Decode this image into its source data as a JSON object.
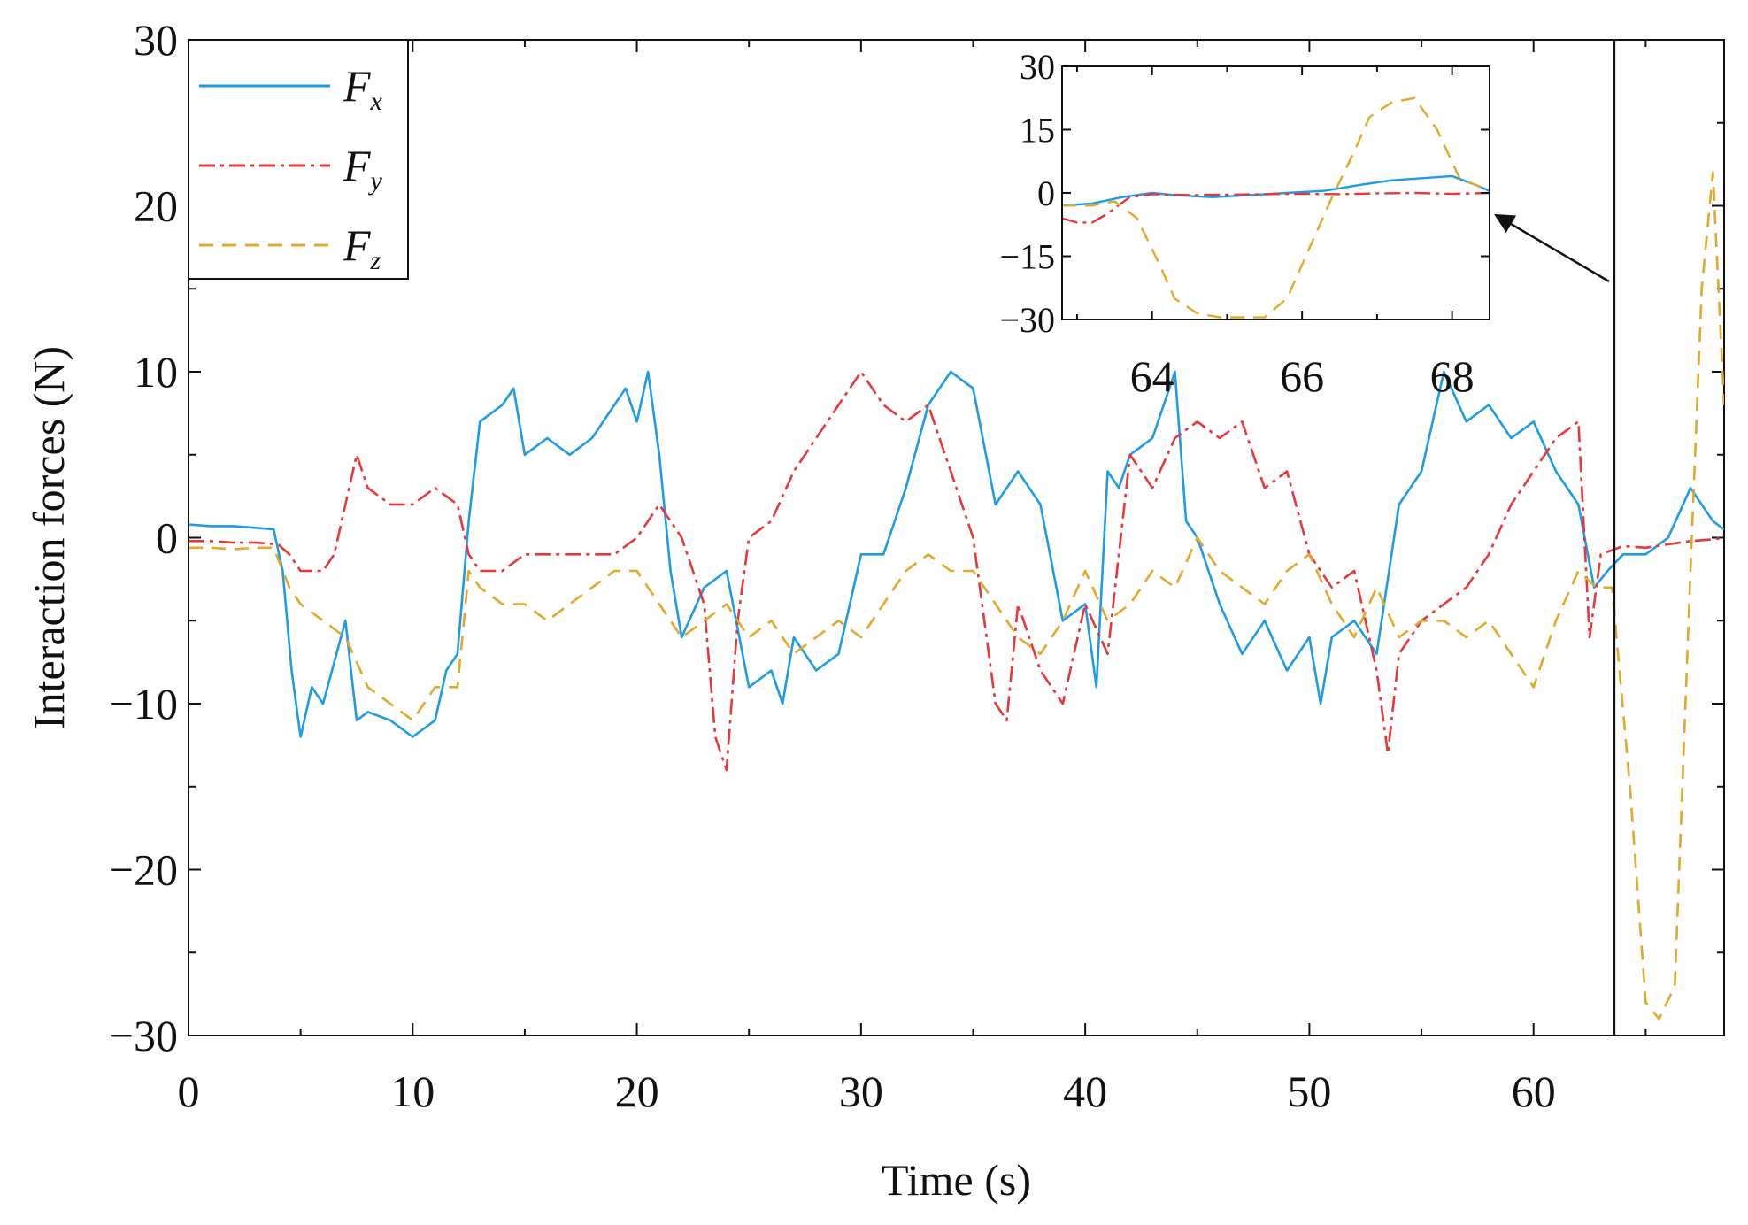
{
  "chart_data": [
    {
      "type": "line",
      "title": "",
      "xlabel": "Time (s)",
      "ylabel": "Interaction forces (N)",
      "xlim": [
        0,
        68.5
      ],
      "ylim": [
        -30,
        30
      ],
      "xticks": [
        0,
        10,
        20,
        30,
        40,
        50,
        60
      ],
      "xtick_labels": [
        "0",
        "10",
        "20",
        "30",
        "40",
        "50",
        "60"
      ],
      "yticks": [
        -30,
        -20,
        -10,
        0,
        10,
        20,
        30
      ],
      "ytick_labels": [
        "−30",
        "−20",
        "−10",
        "0",
        "10",
        "20",
        "30"
      ],
      "legend": {
        "placement": "top-left",
        "entries": [
          {
            "symbol": "F",
            "subscript": "x"
          },
          {
            "symbol": "F",
            "subscript": "y"
          },
          {
            "symbol": "F",
            "subscript": "z"
          }
        ]
      },
      "annotation": {
        "type": "vertical-line",
        "x": 63.6,
        "note": "zoom region start, arrow points to inset"
      },
      "series": [
        {
          "name": "Fx",
          "color": "#1e9be5",
          "style": "solid",
          "x": [
            0,
            1,
            2,
            3,
            3.8,
            4.2,
            4.6,
            5,
            5.5,
            6,
            7,
            7.5,
            8,
            9,
            10,
            11,
            11.5,
            12,
            12.5,
            13,
            14,
            14.5,
            15,
            16,
            17,
            18,
            19,
            19.5,
            20,
            20.5,
            21,
            21.5,
            22,
            23,
            24,
            25,
            26,
            26.5,
            27,
            28,
            29,
            30,
            31,
            32,
            33,
            34,
            35,
            36,
            37,
            38,
            39,
            40,
            40.5,
            41,
            41.5,
            42,
            43,
            44,
            44.5,
            45,
            46,
            47,
            48,
            49,
            50,
            50.5,
            51,
            52,
            53,
            54,
            55,
            56,
            57,
            58,
            59,
            60,
            61,
            62,
            62.7,
            63.3,
            64,
            65,
            66,
            67,
            68,
            68.5
          ],
          "y": [
            0.8,
            0.7,
            0.7,
            0.6,
            0.5,
            -2,
            -8,
            -12,
            -9,
            -10,
            -5,
            -11,
            -10.5,
            -11,
            -12,
            -11,
            -8,
            -7,
            1,
            7,
            8,
            9,
            5,
            6,
            5,
            6,
            8,
            9,
            7,
            10,
            5,
            -2,
            -6,
            -3,
            -2,
            -9,
            -8,
            -10,
            -6,
            -8,
            -7,
            -1,
            -1,
            3,
            8,
            10,
            9,
            2,
            4,
            2,
            -5,
            -4,
            -9,
            4,
            3,
            5,
            6,
            10,
            1,
            0,
            -4,
            -7,
            -5,
            -8,
            -6,
            -10,
            -6,
            -5,
            -7,
            2,
            4,
            10,
            7,
            8,
            6,
            7,
            4,
            2,
            -3,
            -2,
            -1,
            -1,
            0,
            3,
            1,
            0.5
          ]
        },
        {
          "name": "Fy",
          "color": "#e8363a",
          "style": "dashdot",
          "x": [
            0,
            1,
            2,
            3,
            4,
            4.5,
            5,
            6,
            6.5,
            7,
            7.5,
            8,
            9,
            10,
            11,
            12,
            12.5,
            13,
            14,
            15,
            16,
            17,
            18,
            19,
            20,
            20.5,
            21,
            22,
            23,
            23.5,
            24,
            24.5,
            25,
            26,
            27,
            28,
            29,
            30,
            31,
            32,
            33,
            34,
            35,
            36,
            36.5,
            37,
            38,
            39,
            40,
            41,
            42,
            43,
            44,
            45,
            46,
            47,
            48,
            49,
            50,
            51,
            52,
            53,
            53.5,
            54,
            55,
            56,
            57,
            58,
            59,
            60,
            61,
            62,
            62.5,
            63,
            64,
            65,
            66,
            67,
            68,
            68.5
          ],
          "y": [
            -0.2,
            -0.2,
            -0.3,
            -0.3,
            -0.4,
            -1,
            -2,
            -2,
            -1,
            2,
            5,
            3,
            2,
            2,
            3,
            2,
            -1,
            -2,
            -2,
            -1,
            -1,
            -1,
            -1,
            -1,
            0,
            1,
            2,
            0,
            -4,
            -12,
            -14,
            -5,
            0,
            1,
            4,
            6,
            8,
            10,
            8,
            7,
            8,
            4,
            0,
            -10,
            -11,
            -4,
            -8,
            -10,
            -4,
            -7,
            5,
            3,
            6,
            7,
            6,
            7,
            3,
            4,
            -1,
            -3,
            -2,
            -8,
            -13,
            -7,
            -5,
            -4,
            -3,
            -1,
            2,
            4,
            6,
            7,
            -6,
            -1,
            -0.5,
            -0.6,
            -0.4,
            -0.2,
            -0.1,
            0
          ]
        },
        {
          "name": "Fz",
          "color": "#e3a82a",
          "style": "dashed",
          "x": [
            0,
            1,
            2,
            3,
            3.8,
            4.5,
            5,
            6,
            7,
            8,
            9,
            10,
            11,
            12,
            12.5,
            13,
            14,
            15,
            16,
            17,
            18,
            19,
            20,
            21,
            22,
            23,
            24,
            25,
            26,
            27,
            28,
            29,
            30,
            31,
            32,
            33,
            34,
            35,
            36,
            37,
            38,
            39,
            40,
            41,
            42,
            43,
            44,
            45,
            46,
            47,
            48,
            49,
            50,
            51,
            52,
            53,
            54,
            55,
            56,
            57,
            58,
            59,
            60,
            61,
            62,
            62.8,
            63.5,
            64.3,
            65,
            65.6,
            66.3,
            67,
            67.5,
            68,
            68.5
          ],
          "y": [
            -0.6,
            -0.6,
            -0.7,
            -0.6,
            -0.6,
            -3,
            -4,
            -5,
            -6,
            -9,
            -10,
            -11,
            -9,
            -9,
            -2,
            -3,
            -4,
            -4,
            -5,
            -4,
            -3,
            -2,
            -2,
            -4,
            -6,
            -5,
            -4,
            -6,
            -5,
            -7,
            -6,
            -5,
            -6,
            -4,
            -2,
            -1,
            -2,
            -2,
            -4,
            -6,
            -7,
            -5,
            -2,
            -5,
            -4,
            -2,
            -3,
            0,
            -2,
            -3,
            -4,
            -2,
            -1,
            -4,
            -6,
            -3,
            -6,
            -5,
            -5,
            -6,
            -5,
            -7,
            -9,
            -5,
            -2,
            -3,
            -3,
            -15,
            -28,
            -29,
            -27,
            -2,
            15,
            22,
            8
          ]
        }
      ]
    },
    {
      "type": "line",
      "title": "",
      "xlabel": "",
      "ylabel": "",
      "xlim": [
        62.8,
        68.5
      ],
      "ylim": [
        -30,
        30
      ],
      "xticks": [
        64,
        66,
        68
      ],
      "xtick_labels": [
        "64",
        "66",
        "68"
      ],
      "yticks": [
        -30,
        -15,
        0,
        15,
        30
      ],
      "ytick_labels": [
        "−30",
        "−15",
        "0",
        "15",
        "30"
      ],
      "legend": null,
      "series": [
        {
          "name": "Fx",
          "color": "#1e9be5",
          "style": "solid",
          "x": [
            62.8,
            63.2,
            63.6,
            64,
            64.3,
            64.8,
            65.3,
            65.8,
            66.3,
            66.8,
            67.2,
            67.6,
            68,
            68.3,
            68.5
          ],
          "y": [
            -3,
            -2.5,
            -1,
            0,
            -0.5,
            -1,
            -0.5,
            0,
            0.5,
            2,
            3,
            3.5,
            4,
            2,
            0.5
          ]
        },
        {
          "name": "Fy",
          "color": "#e8363a",
          "style": "dashdot",
          "x": [
            62.8,
            63,
            63.2,
            63.4,
            63.7,
            64,
            64.5,
            65,
            65.5,
            66,
            66.5,
            67,
            67.5,
            68,
            68.5
          ],
          "y": [
            -6,
            -7,
            -7,
            -5,
            -1,
            -0.3,
            -0.5,
            -0.4,
            -0.3,
            -0.2,
            -0.3,
            -0.1,
            0,
            -0.2,
            0
          ]
        },
        {
          "name": "Fz",
          "color": "#e3a82a",
          "style": "dashed",
          "x": [
            62.8,
            63.2,
            63.5,
            63.8,
            64.1,
            64.3,
            64.6,
            64.9,
            65.2,
            65.5,
            65.8,
            66.1,
            66.4,
            66.7,
            66.9,
            67.2,
            67.5,
            67.8,
            68.1,
            68.5
          ],
          "y": [
            -3,
            -3,
            -2,
            -6,
            -17,
            -25,
            -28.5,
            -29.5,
            -29.5,
            -29.5,
            -25,
            -13,
            -1,
            10,
            18,
            21.5,
            22.5,
            15,
            3.5,
            0.5
          ]
        }
      ]
    }
  ]
}
